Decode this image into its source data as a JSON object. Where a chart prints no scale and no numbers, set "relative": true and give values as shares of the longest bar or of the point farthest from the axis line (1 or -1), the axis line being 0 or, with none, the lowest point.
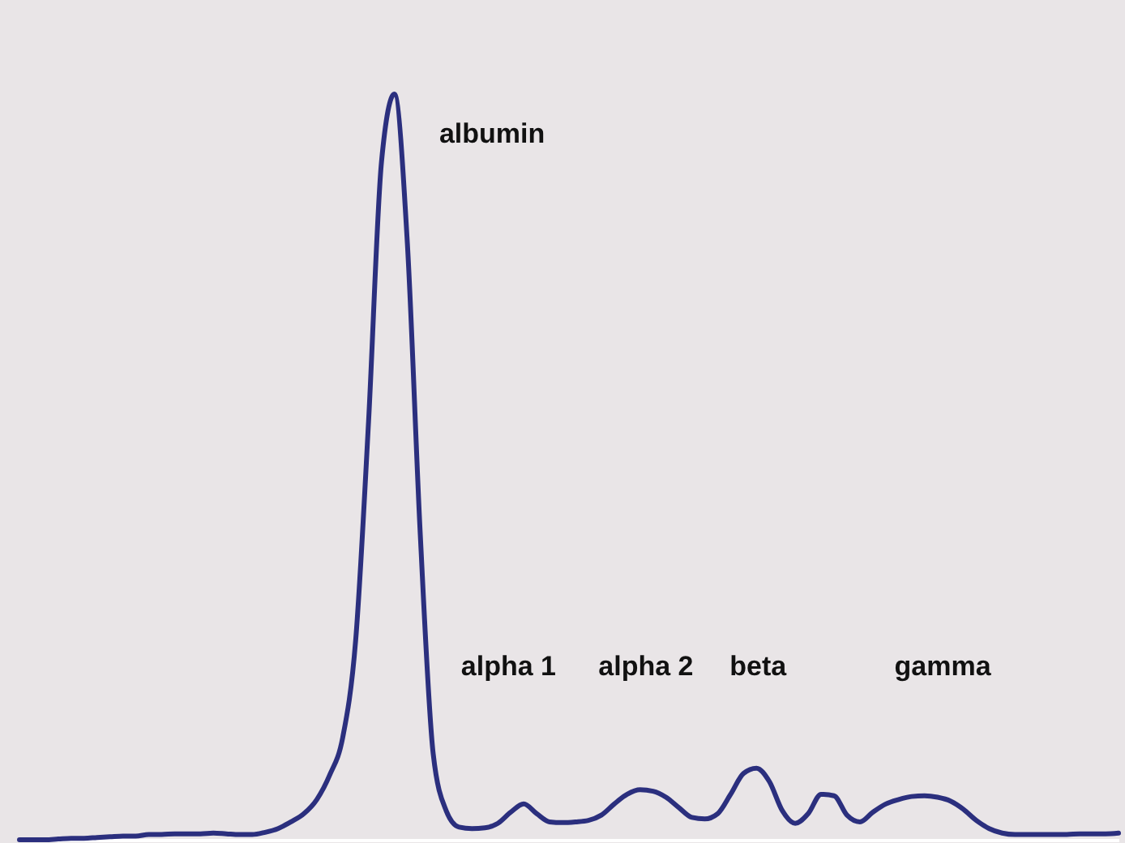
{
  "chart_data": {
    "type": "line",
    "relative": true,
    "grid": false,
    "marker": "none",
    "line_style": "solid",
    "categories": [
      null,
      null,
      null,
      null,
      null,
      null,
      null,
      null,
      null,
      null,
      null,
      null,
      null,
      null,
      null,
      null,
      null,
      null,
      null,
      null,
      null,
      null,
      null,
      null,
      null,
      null,
      null,
      null,
      null,
      null,
      null,
      null,
      null,
      null,
      null,
      null,
      null,
      null,
      null,
      null,
      null,
      null,
      null,
      null,
      null,
      null,
      null,
      null,
      null,
      null,
      null,
      null,
      null,
      null,
      null,
      null,
      null,
      null,
      null,
      null,
      null,
      null,
      null,
      null,
      null,
      null,
      null,
      null,
      null,
      null,
      null,
      null,
      null,
      null,
      null,
      null,
      null,
      null,
      null,
      null,
      null,
      null,
      null,
      null,
      null,
      null
    ],
    "series": [
      {
        "color": "#2b2f7e",
        "values": [
          0,
          0,
          0,
          0.001,
          0.002,
          0.002,
          0.003,
          0.004,
          0.005,
          0.005,
          0.007,
          0.007,
          0.008,
          0.008,
          0.008,
          0.009,
          0.008,
          0.007,
          0.007,
          0.01,
          0.015,
          0.024,
          0.035,
          0.054,
          0.087,
          0.137,
          0.267,
          0.561,
          0.909,
          1,
          0.8,
          0.409,
          0.115,
          0.039,
          0.017,
          0.015,
          0.016,
          0.022,
          0.037,
          0.048,
          0.035,
          0.024,
          0.023,
          0.024,
          0.026,
          0.033,
          0.048,
          0.061,
          0.067,
          0.065,
          0.057,
          0.043,
          0.03,
          0.028,
          0.035,
          0.061,
          0.089,
          0.096,
          0.078,
          0.039,
          0.022,
          0.035,
          0.061,
          0.059,
          0.033,
          0.024,
          0.037,
          0.048,
          0.054,
          0.058,
          0.059,
          0.057,
          0.052,
          0.041,
          0.026,
          0.015,
          0.009,
          0.007,
          0.007,
          0.007,
          0.007,
          0.007,
          0.008,
          0.008,
          0.008,
          0.009
        ]
      }
    ],
    "annotations": [
      "albumin",
      "alpha 1",
      "alpha 2",
      "beta",
      "gamma"
    ]
  }
}
